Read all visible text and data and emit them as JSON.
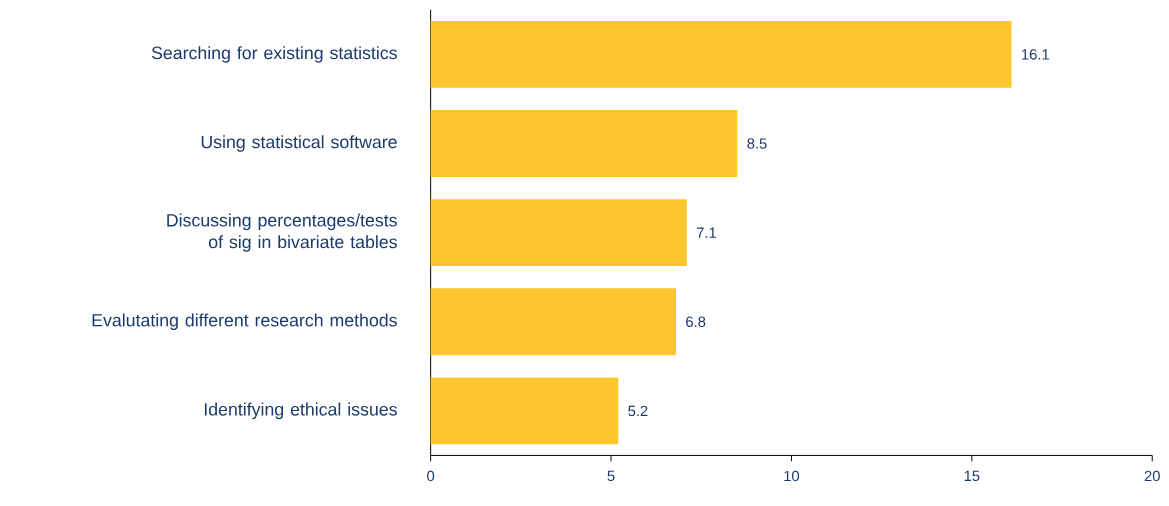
{
  "chart_data": {
    "type": "bar",
    "orientation": "horizontal",
    "categories": [
      "Searching for existing statistics",
      "Using statistical software",
      "Discussing percentages/tests of sig in bivariate tables",
      "Evalutating different research methods",
      "Identifying ethical issues"
    ],
    "values": [
      16.1,
      8.5,
      7.1,
      6.8,
      5.2
    ],
    "color": "#fdc62c",
    "xlim": [
      0,
      20
    ],
    "xticks": [
      0,
      5,
      10,
      15,
      20
    ],
    "data_labels": true
  }
}
